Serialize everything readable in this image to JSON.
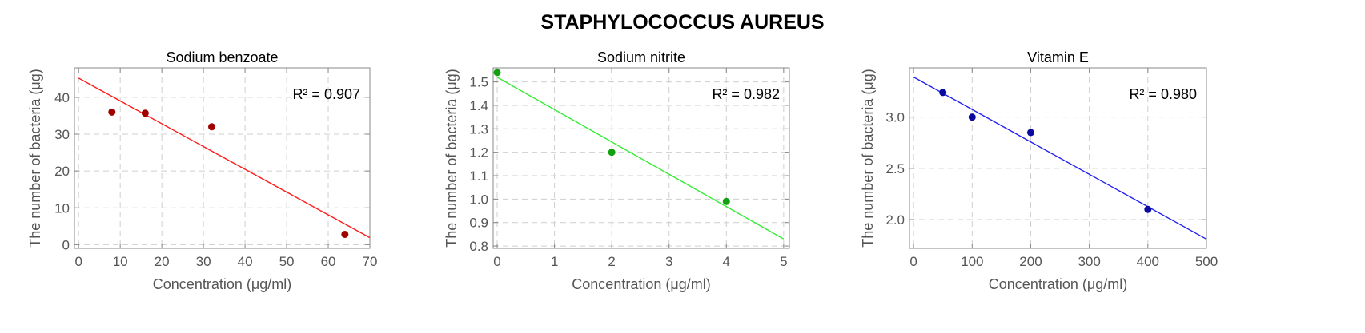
{
  "figure": {
    "title": "STAPHYLOCOCCUS AUREUS"
  },
  "chart_data": [
    {
      "type": "scatter",
      "title": "Sodium benzoate",
      "xlabel": "Concentration (μg/ml)",
      "ylabel": "The number of bacteria (μg)",
      "xlim": [
        -1,
        70
      ],
      "ylim": [
        -1,
        48
      ],
      "xticks": [
        0,
        10,
        20,
        30,
        40,
        50,
        60,
        70
      ],
      "yticks": [
        0,
        10,
        20,
        30,
        40
      ],
      "x": [
        8,
        16,
        32,
        64
      ],
      "y": [
        36,
        35.7,
        32,
        2.8
      ],
      "fit": {
        "x": [
          0,
          70
        ],
        "y": [
          45.2,
          1.9
        ]
      },
      "annotation": "R² = 0.907",
      "point_color": "#a00000",
      "line_color": "#ff1a1a",
      "grid": true
    },
    {
      "type": "scatter",
      "title": "Sodium nitrite",
      "xlabel": "Concentration (μg/ml)",
      "ylabel": "The number of bacteria (μg)",
      "xlim": [
        -0.07,
        5.1
      ],
      "ylim": [
        0.79,
        1.56
      ],
      "xticks": [
        0,
        1,
        2,
        3,
        4,
        5
      ],
      "yticks": [
        0.8,
        0.9,
        1.0,
        1.1,
        1.2,
        1.3,
        1.4,
        1.5
      ],
      "x": [
        0,
        2,
        4
      ],
      "y": [
        1.54,
        1.2,
        0.99
      ],
      "fit": {
        "x": [
          0,
          5
        ],
        "y": [
          1.52,
          0.83
        ]
      },
      "annotation": "R² = 0.982",
      "point_color": "#10a010",
      "line_color": "#33ee33",
      "grid": true
    },
    {
      "type": "scatter",
      "title": "Vitamin E",
      "xlabel": "Concentration (μg/ml)",
      "ylabel": "The number of bacteria (μg)",
      "xlim": [
        -7,
        500
      ],
      "ylim": [
        1.72,
        3.48
      ],
      "xticks": [
        0,
        100,
        200,
        300,
        400,
        500
      ],
      "yticks": [
        2.0,
        2.5,
        3.0
      ],
      "x": [
        50,
        100,
        200,
        400
      ],
      "y": [
        3.24,
        3.0,
        2.85,
        2.1
      ],
      "fit": {
        "x": [
          0,
          500
        ],
        "y": [
          3.39,
          1.81
        ]
      },
      "annotation": "R² = 0.980",
      "point_color": "#0a0aa0",
      "line_color": "#2222ee",
      "grid": true
    }
  ]
}
